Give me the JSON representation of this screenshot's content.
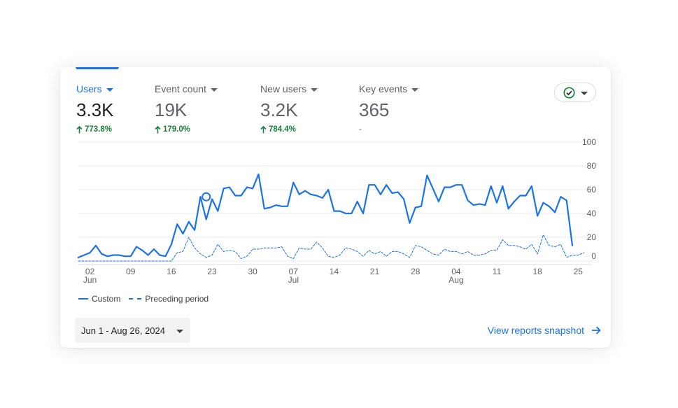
{
  "metrics": [
    {
      "label": "Users",
      "value": "3.3K",
      "change": "773.8%",
      "trend": "up",
      "active": true
    },
    {
      "label": "Event count",
      "value": "19K",
      "change": "179.0%",
      "trend": "up",
      "active": false
    },
    {
      "label": "New users",
      "value": "3.2K",
      "change": "784.4%",
      "trend": "up",
      "active": false
    },
    {
      "label": "Key events",
      "value": "365",
      "change": "-",
      "trend": "none",
      "active": false
    }
  ],
  "colors": {
    "accent": "#1a73e8",
    "positive": "#188038",
    "check": "#188038"
  },
  "icons": {
    "compare": "check-circle-icon",
    "dropdown": "caret-down-icon",
    "link": "arrow-right-icon"
  },
  "chart_data": {
    "type": "line",
    "y_ticks": [
      "100",
      "80",
      "60",
      "40",
      "20",
      "0"
    ],
    "ylim": [
      0,
      100
    ],
    "x_ticks": [
      {
        "day": 2,
        "label": "02",
        "month": "Jun"
      },
      {
        "day": 9,
        "label": "09",
        "month": ""
      },
      {
        "day": 16,
        "label": "16",
        "month": ""
      },
      {
        "day": 23,
        "label": "23",
        "month": ""
      },
      {
        "day": 30,
        "label": "30",
        "month": ""
      },
      {
        "day": 37,
        "label": "07",
        "month": "Jul"
      },
      {
        "day": 44,
        "label": "14",
        "month": ""
      },
      {
        "day": 51,
        "label": "21",
        "month": ""
      },
      {
        "day": 58,
        "label": "28",
        "month": ""
      },
      {
        "day": 65,
        "label": "04",
        "month": "Aug"
      },
      {
        "day": 72,
        "label": "11",
        "month": ""
      },
      {
        "day": 79,
        "label": "18",
        "month": ""
      },
      {
        "day": 86,
        "label": "25",
        "month": ""
      }
    ],
    "highlight_point": {
      "day": 22,
      "value": 54
    },
    "series": [
      {
        "name": "Custom",
        "style": "solid",
        "values": [
          3,
          5,
          7,
          13,
          6,
          4,
          5,
          5,
          4,
          4,
          12,
          9,
          5,
          10,
          5,
          4,
          14,
          31,
          23,
          33,
          26,
          54,
          35,
          52,
          42,
          61,
          62,
          55,
          55,
          62,
          61,
          73,
          44,
          45,
          47,
          46,
          46,
          66,
          56,
          59,
          56,
          55,
          53,
          60,
          42,
          42,
          40,
          40,
          50,
          40,
          64,
          64,
          56,
          64,
          57,
          58,
          52,
          32,
          45,
          46,
          72,
          61,
          50,
          62,
          62,
          64,
          64,
          51,
          47,
          48,
          47,
          63,
          49,
          63,
          44,
          50,
          55,
          55,
          63,
          38,
          49,
          46,
          41,
          54,
          51,
          13
        ],
        "start_day": 0
      },
      {
        "name": "Preceding period",
        "style": "dashed",
        "values": [
          0,
          0,
          0,
          0,
          0,
          0,
          0,
          0,
          0,
          0,
          0,
          0,
          0,
          0,
          0,
          0,
          0,
          7,
          8,
          20,
          11,
          6,
          3,
          5,
          14,
          8,
          9,
          8,
          2,
          4,
          10,
          10,
          11,
          11,
          11,
          12,
          4,
          2,
          11,
          10,
          10,
          16,
          11,
          4,
          3,
          5,
          11,
          10,
          8,
          4,
          9,
          6,
          8,
          4,
          8,
          8,
          6,
          3,
          13,
          12,
          9,
          6,
          5,
          10,
          8,
          8,
          6,
          8,
          5,
          5,
          6,
          9,
          9,
          18,
          13,
          13,
          12,
          10,
          14,
          6,
          22,
          13,
          12,
          14,
          3,
          5,
          5,
          7
        ],
        "start_day": 0
      }
    ]
  },
  "legend": {
    "custom": "Custom",
    "preceding": "Preceding period"
  },
  "date_range": {
    "label": "Jun 1 - Aug 26, 2024"
  },
  "snapshot_link": {
    "label": "View reports snapshot"
  }
}
